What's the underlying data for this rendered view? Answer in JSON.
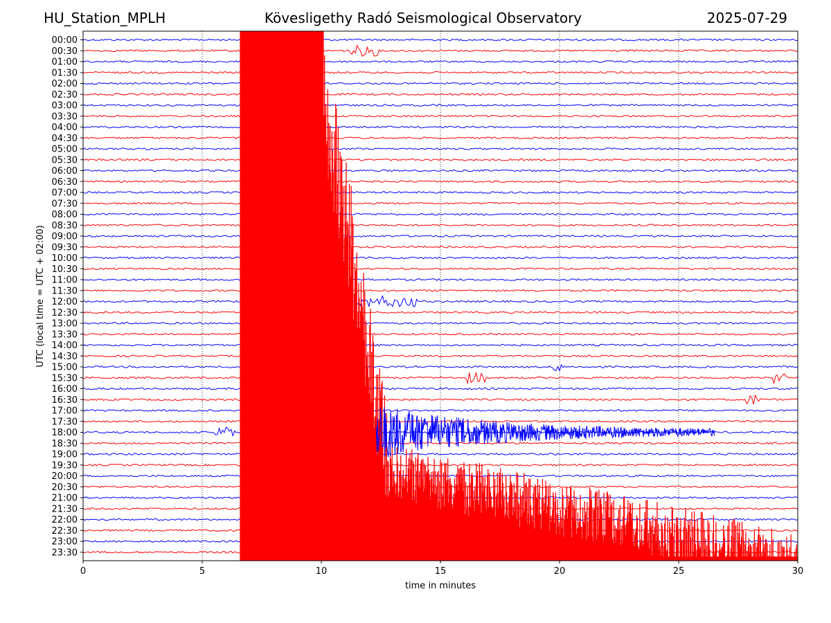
{
  "header": {
    "station": "HU_Station_MPLH",
    "observatory": "Kövesligethy Radó Seismological Observatory",
    "date": "2025-07-29"
  },
  "chart_data": {
    "type": "line",
    "title": "Kövesligethy Radó Seismological Observatory",
    "xlabel": "time in minutes",
    "ylabel": "UTC (local time = UTC + 02:00)",
    "xlim": [
      0,
      30
    ],
    "x_ticks": [
      0,
      5,
      10,
      15,
      20,
      25,
      30
    ],
    "x_grid": "dotted vertical lines at each x tick",
    "row_labels": [
      "00:00",
      "00:30",
      "01:00",
      "01:30",
      "02:00",
      "02:30",
      "03:00",
      "03:30",
      "04:00",
      "04:30",
      "05:00",
      "05:30",
      "06:00",
      "06:30",
      "07:00",
      "07:30",
      "08:00",
      "08:30",
      "09:00",
      "09:30",
      "10:00",
      "10:30",
      "11:00",
      "11:30",
      "12:00",
      "12:30",
      "13:00",
      "13:30",
      "14:00",
      "14:30",
      "15:00",
      "15:30",
      "16:00",
      "16:30",
      "17:00",
      "17:30",
      "18:00",
      "18:30",
      "19:00",
      "19:30",
      "20:00",
      "20:30",
      "21:00",
      "21:30",
      "22:00",
      "22:30",
      "23:00",
      "23:30"
    ],
    "colors": {
      "even_rows": "#0000ff",
      "odd_rows": "#ff0000"
    },
    "events": [
      {
        "row": "23:30",
        "start_min": 6.6,
        "end_min": 30,
        "description": "large earthquake, saturated trace overlapping many rows"
      },
      {
        "row": "18:00",
        "start_min": 12.3,
        "end_min": 26.5,
        "description": "blue coda after large amplitude arrivals"
      },
      {
        "row": "12:00",
        "start_min": 11.5,
        "end_min": 14.0
      },
      {
        "row": "15:00",
        "start_min": 19.7,
        "end_min": 20.1
      },
      {
        "row": "15:30",
        "start_min": 16.1,
        "end_min": 16.9
      },
      {
        "row": "15:30",
        "start_min": 29.0,
        "end_min": 29.5
      },
      {
        "row": "16:30",
        "start_min": 27.8,
        "end_min": 28.4
      },
      {
        "row": "18:00",
        "start_min": 5.4,
        "end_min": 6.4
      },
      {
        "row": "00:30",
        "start_min": 11.2,
        "end_min": 12.4
      }
    ]
  }
}
